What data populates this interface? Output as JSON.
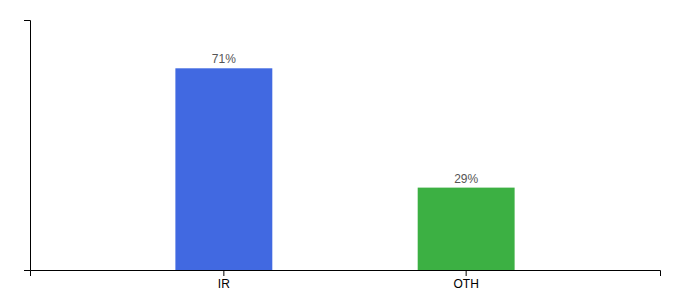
{
  "chart_data": {
    "type": "bar",
    "categories": [
      "IR",
      "OTH"
    ],
    "values": [
      71,
      29
    ],
    "value_labels": [
      "71%",
      "29%"
    ],
    "colors": [
      "#4169e1",
      "#3cb043"
    ],
    "ylim": [
      0,
      88
    ],
    "data_labels": true,
    "tick_labels": "x",
    "grid": false
  }
}
